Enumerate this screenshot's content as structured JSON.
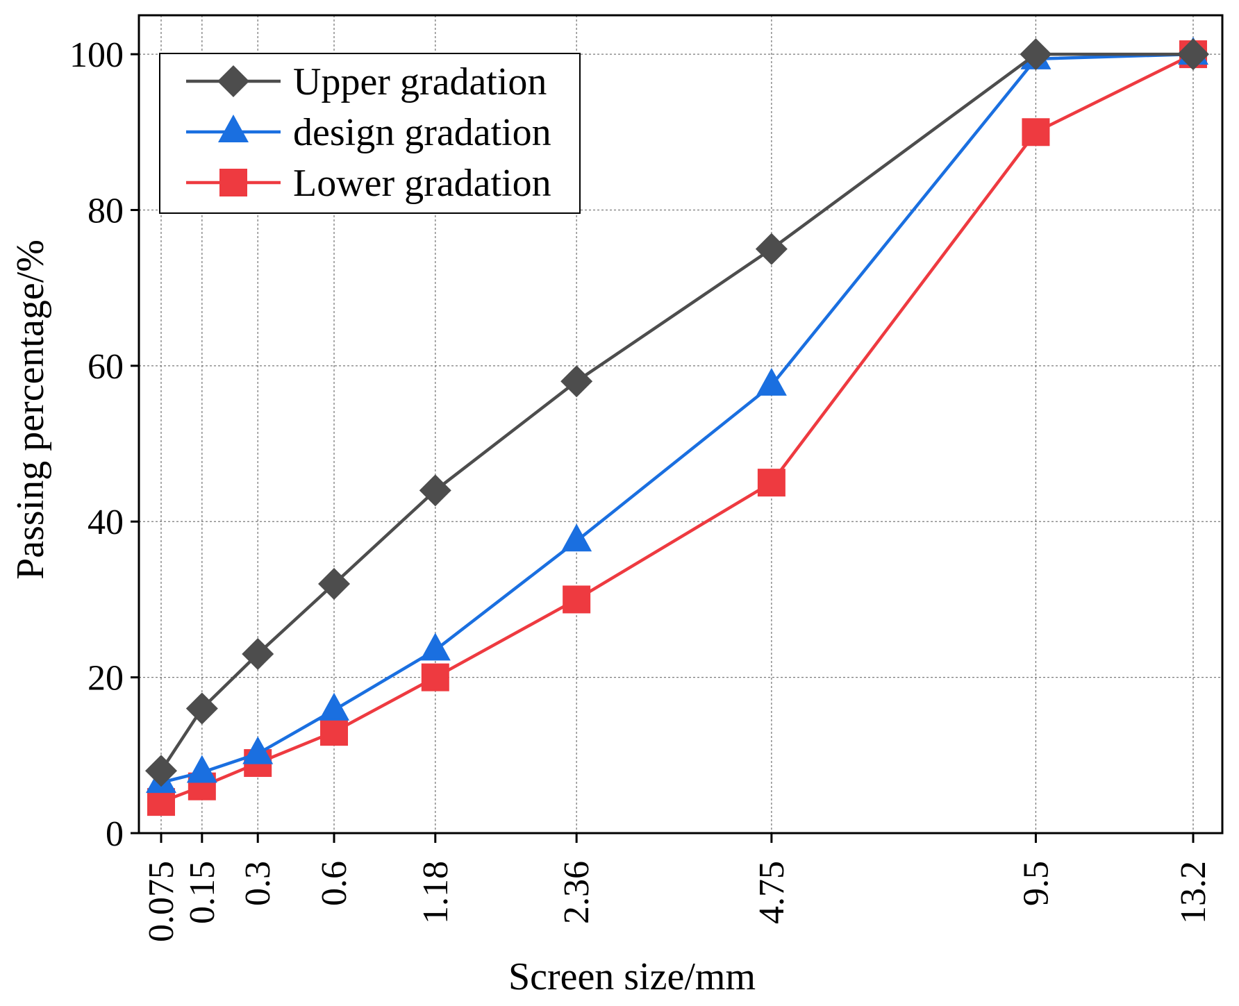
{
  "chart_data": {
    "type": "line",
    "title": "",
    "xlabel": "Screen size/mm",
    "ylabel": "Passing percentage/%",
    "categories": [
      "0.075",
      "0.15",
      "0.3",
      "0.6",
      "1.18",
      "2.36",
      "4.75",
      "9.5",
      "13.2"
    ],
    "x_scale": "power 0.45 (nonlinear gradation scale)",
    "ylim": [
      0,
      105
    ],
    "yticks": [
      0,
      20,
      40,
      60,
      80,
      100
    ],
    "grid": true,
    "legend_position": "top-left",
    "series": [
      {
        "name": "Upper gradation",
        "marker": "diamond",
        "color": "#4d4d4d",
        "values": [
          8,
          16,
          23,
          32,
          44,
          58,
          75,
          100,
          100
        ]
      },
      {
        "name": "design gradation",
        "marker": "triangle",
        "color": "#1a6fe0",
        "values": [
          6.5,
          7.8,
          10.2,
          15.8,
          23.5,
          37.5,
          57.5,
          99.4,
          100
        ]
      },
      {
        "name": "Lower gradation",
        "marker": "square",
        "color": "#ee3a40",
        "values": [
          4,
          6,
          9,
          13,
          20,
          30,
          45,
          90,
          100
        ]
      }
    ]
  }
}
